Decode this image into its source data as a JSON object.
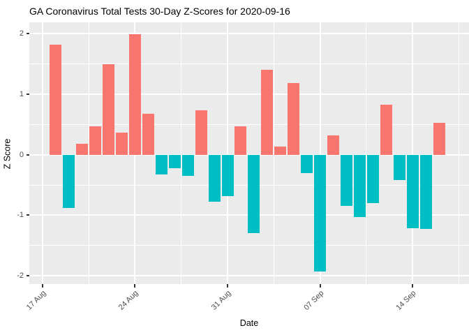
{
  "title": "GA Coronavirus Total Tests 30-Day Z-Scores for 2020-09-16",
  "chart_data": {
    "type": "bar",
    "title": "GA Coronavirus Total Tests 30-Day Z-Scores for 2020-09-16",
    "xlabel": "Date",
    "ylabel": "Z Score",
    "ylim": [
      -2.13,
      2.19
    ],
    "grid": true,
    "legend_position": "none",
    "colors": {
      "positive": "#F8766D",
      "negative": "#00BFC4",
      "panel_background": "#EBEBEB",
      "gridline": "#FFFFFF",
      "axis_text": "#4D4D4D",
      "tick_mark": "#333333",
      "title_text": "#000000"
    },
    "y_ticks": [
      {
        "label": "2",
        "value": 2
      },
      {
        "label": "1",
        "value": 1
      },
      {
        "label": "0",
        "value": 0
      },
      {
        "label": "-1",
        "value": -1
      },
      {
        "label": "-2",
        "value": -2
      }
    ],
    "y_minor": [
      1.5,
      0.5,
      -0.5,
      -1.5
    ],
    "x_ticks": [
      {
        "label": "17 Aug",
        "day": 0
      },
      {
        "label": "24 Aug",
        "day": 7
      },
      {
        "label": "31 Aug",
        "day": 14
      },
      {
        "label": "07 Sep",
        "day": 21
      },
      {
        "label": "14 Sep",
        "day": 28
      }
    ],
    "x_minor_days": [
      3.5,
      10.5,
      17.5,
      24.5,
      31.5
    ],
    "bars": [
      {
        "date": "2020-08-18",
        "day": 1,
        "z": 1.82
      },
      {
        "date": "2020-08-19",
        "day": 2,
        "z": -0.88
      },
      {
        "date": "2020-08-20",
        "day": 3,
        "z": 0.18
      },
      {
        "date": "2020-08-21",
        "day": 4,
        "z": 0.47
      },
      {
        "date": "2020-08-22",
        "day": 5,
        "z": 1.5
      },
      {
        "date": "2020-08-23",
        "day": 6,
        "z": 0.37
      },
      {
        "date": "2020-08-24",
        "day": 7,
        "z": 1.99
      },
      {
        "date": "2020-08-25",
        "day": 8,
        "z": 0.68
      },
      {
        "date": "2020-08-26",
        "day": 9,
        "z": -0.33
      },
      {
        "date": "2020-08-27",
        "day": 10,
        "z": -0.22
      },
      {
        "date": "2020-08-28",
        "day": 11,
        "z": -0.35
      },
      {
        "date": "2020-08-29",
        "day": 12,
        "z": 0.74
      },
      {
        "date": "2020-08-30",
        "day": 13,
        "z": -0.78
      },
      {
        "date": "2020-08-31",
        "day": 14,
        "z": -0.69
      },
      {
        "date": "2020-09-01",
        "day": 15,
        "z": 0.47
      },
      {
        "date": "2020-09-02",
        "day": 16,
        "z": -1.3
      },
      {
        "date": "2020-09-03",
        "day": 17,
        "z": 1.4
      },
      {
        "date": "2020-09-04",
        "day": 18,
        "z": 0.14
      },
      {
        "date": "2020-09-05",
        "day": 19,
        "z": 1.19
      },
      {
        "date": "2020-09-06",
        "day": 20,
        "z": -0.3
      },
      {
        "date": "2020-09-07",
        "day": 21,
        "z": -1.93
      },
      {
        "date": "2020-09-08",
        "day": 22,
        "z": 0.32
      },
      {
        "date": "2020-09-09",
        "day": 23,
        "z": -0.85
      },
      {
        "date": "2020-09-10",
        "day": 24,
        "z": -1.03
      },
      {
        "date": "2020-09-11",
        "day": 25,
        "z": -0.8
      },
      {
        "date": "2020-09-12",
        "day": 26,
        "z": 0.83
      },
      {
        "date": "2020-09-13",
        "day": 27,
        "z": -0.42
      },
      {
        "date": "2020-09-14",
        "day": 28,
        "z": -1.22
      },
      {
        "date": "2020-09-15",
        "day": 29,
        "z": -1.23
      },
      {
        "date": "2020-09-16",
        "day": 30,
        "z": 0.53
      }
    ]
  }
}
